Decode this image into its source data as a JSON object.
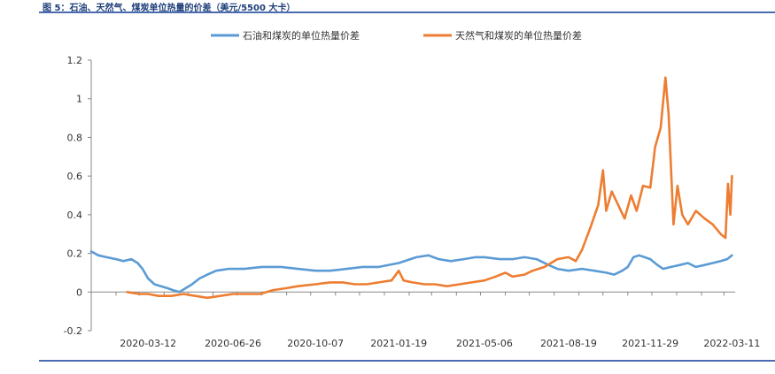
{
  "header": {
    "figure_title": "图 5：石油、天然气、煤炭单位热量的价差（美元/5500 大卡）"
  },
  "colors": {
    "oil_coal": "#5b9bd5",
    "gas_coal": "#ed7d31",
    "rule": "#4a6bb0",
    "axis": "#888888"
  },
  "chart_data": {
    "type": "line",
    "title": "",
    "xlabel": "",
    "ylabel": "",
    "ylim": [
      -0.2,
      1.2
    ],
    "yticks": [
      -0.2,
      0,
      0.2,
      0.4,
      0.6,
      0.8,
      1,
      1.2
    ],
    "ytick_labels": [
      "-0.2",
      "0",
      "0.2",
      "0.4",
      "0.6",
      "0.8",
      "1",
      "1.2"
    ],
    "xlim": [
      "2020-01-01",
      "2022-03-15"
    ],
    "xticks": [
      "2020-03-12",
      "2020-06-26",
      "2020-10-07",
      "2021-01-19",
      "2021-05-06",
      "2021-08-19",
      "2021-11-29",
      "2022-03-11"
    ],
    "legend_position": "top",
    "grid": false,
    "series": [
      {
        "name": "石油和煤炭的单位热量价差",
        "color": "#5b9bd5",
        "points": [
          [
            "2020-01-01",
            0.21
          ],
          [
            "2020-01-10",
            0.19
          ],
          [
            "2020-01-20",
            0.18
          ],
          [
            "2020-02-01",
            0.17
          ],
          [
            "2020-02-10",
            0.16
          ],
          [
            "2020-02-20",
            0.17
          ],
          [
            "2020-02-28",
            0.15
          ],
          [
            "2020-03-05",
            0.12
          ],
          [
            "2020-03-12",
            0.07
          ],
          [
            "2020-03-20",
            0.04
          ],
          [
            "2020-03-28",
            0.03
          ],
          [
            "2020-04-05",
            0.02
          ],
          [
            "2020-04-12",
            0.01
          ],
          [
            "2020-04-20",
            0.0
          ],
          [
            "2020-04-28",
            0.02
          ],
          [
            "2020-05-06",
            0.04
          ],
          [
            "2020-05-15",
            0.07
          ],
          [
            "2020-05-25",
            0.09
          ],
          [
            "2020-06-05",
            0.11
          ],
          [
            "2020-06-20",
            0.12
          ],
          [
            "2020-07-10",
            0.12
          ],
          [
            "2020-08-01",
            0.13
          ],
          [
            "2020-08-25",
            0.13
          ],
          [
            "2020-09-15",
            0.12
          ],
          [
            "2020-10-07",
            0.11
          ],
          [
            "2020-10-25",
            0.11
          ],
          [
            "2020-11-15",
            0.12
          ],
          [
            "2020-12-05",
            0.13
          ],
          [
            "2020-12-25",
            0.13
          ],
          [
            "2021-01-19",
            0.15
          ],
          [
            "2021-02-10",
            0.18
          ],
          [
            "2021-02-25",
            0.19
          ],
          [
            "2021-03-10",
            0.17
          ],
          [
            "2021-03-25",
            0.16
          ],
          [
            "2021-04-10",
            0.17
          ],
          [
            "2021-04-25",
            0.18
          ],
          [
            "2021-05-06",
            0.18
          ],
          [
            "2021-05-25",
            0.17
          ],
          [
            "2021-06-10",
            0.17
          ],
          [
            "2021-06-25",
            0.18
          ],
          [
            "2021-07-10",
            0.17
          ],
          [
            "2021-07-25",
            0.14
          ],
          [
            "2021-08-05",
            0.12
          ],
          [
            "2021-08-19",
            0.11
          ],
          [
            "2021-09-05",
            0.12
          ],
          [
            "2021-09-20",
            0.11
          ],
          [
            "2021-10-05",
            0.1
          ],
          [
            "2021-10-15",
            0.09
          ],
          [
            "2021-10-25",
            0.11
          ],
          [
            "2021-11-01",
            0.13
          ],
          [
            "2021-11-08",
            0.18
          ],
          [
            "2021-11-15",
            0.19
          ],
          [
            "2021-11-22",
            0.18
          ],
          [
            "2021-11-29",
            0.17
          ],
          [
            "2021-12-08",
            0.14
          ],
          [
            "2021-12-15",
            0.12
          ],
          [
            "2021-12-25",
            0.13
          ],
          [
            "2022-01-05",
            0.14
          ],
          [
            "2022-01-15",
            0.15
          ],
          [
            "2022-01-25",
            0.13
          ],
          [
            "2022-02-05",
            0.14
          ],
          [
            "2022-02-15",
            0.15
          ],
          [
            "2022-02-25",
            0.16
          ],
          [
            "2022-03-05",
            0.17
          ],
          [
            "2022-03-11",
            0.19
          ]
        ]
      },
      {
        "name": "天然气和煤炭的单位热量价差",
        "color": "#ed7d31",
        "points": [
          [
            "2020-02-15",
            0.0
          ],
          [
            "2020-03-01",
            -0.01
          ],
          [
            "2020-03-12",
            -0.01
          ],
          [
            "2020-03-25",
            -0.02
          ],
          [
            "2020-04-10",
            -0.02
          ],
          [
            "2020-04-25",
            -0.01
          ],
          [
            "2020-05-10",
            -0.02
          ],
          [
            "2020-05-25",
            -0.03
          ],
          [
            "2020-06-10",
            -0.02
          ],
          [
            "2020-06-26",
            -0.01
          ],
          [
            "2020-07-15",
            -0.01
          ],
          [
            "2020-07-30",
            -0.01
          ],
          [
            "2020-08-15",
            0.01
          ],
          [
            "2020-09-01",
            0.02
          ],
          [
            "2020-09-15",
            0.03
          ],
          [
            "2020-10-07",
            0.04
          ],
          [
            "2020-10-25",
            0.05
          ],
          [
            "2020-11-10",
            0.05
          ],
          [
            "2020-11-25",
            0.04
          ],
          [
            "2020-12-10",
            0.04
          ],
          [
            "2020-12-25",
            0.05
          ],
          [
            "2021-01-10",
            0.06
          ],
          [
            "2021-01-19",
            0.11
          ],
          [
            "2021-01-25",
            0.06
          ],
          [
            "2021-02-05",
            0.05
          ],
          [
            "2021-02-20",
            0.04
          ],
          [
            "2021-03-05",
            0.04
          ],
          [
            "2021-03-20",
            0.03
          ],
          [
            "2021-04-05",
            0.04
          ],
          [
            "2021-04-20",
            0.05
          ],
          [
            "2021-05-06",
            0.06
          ],
          [
            "2021-05-20",
            0.08
          ],
          [
            "2021-06-01",
            0.1
          ],
          [
            "2021-06-10",
            0.08
          ],
          [
            "2021-06-25",
            0.09
          ],
          [
            "2021-07-05",
            0.11
          ],
          [
            "2021-07-20",
            0.13
          ],
          [
            "2021-08-05",
            0.17
          ],
          [
            "2021-08-19",
            0.18
          ],
          [
            "2021-08-28",
            0.16
          ],
          [
            "2021-09-05",
            0.22
          ],
          [
            "2021-09-15",
            0.33
          ],
          [
            "2021-09-25",
            0.45
          ],
          [
            "2021-10-01",
            0.63
          ],
          [
            "2021-10-05",
            0.42
          ],
          [
            "2021-10-12",
            0.52
          ],
          [
            "2021-10-20",
            0.45
          ],
          [
            "2021-10-28",
            0.38
          ],
          [
            "2021-11-05",
            0.5
          ],
          [
            "2021-11-12",
            0.42
          ],
          [
            "2021-11-20",
            0.55
          ],
          [
            "2021-11-29",
            0.54
          ],
          [
            "2021-12-05",
            0.75
          ],
          [
            "2021-12-12",
            0.85
          ],
          [
            "2021-12-18",
            1.11
          ],
          [
            "2021-12-22",
            0.92
          ],
          [
            "2021-12-28",
            0.35
          ],
          [
            "2022-01-02",
            0.55
          ],
          [
            "2022-01-08",
            0.4
          ],
          [
            "2022-01-15",
            0.35
          ],
          [
            "2022-01-25",
            0.42
          ],
          [
            "2022-02-05",
            0.38
          ],
          [
            "2022-02-15",
            0.35
          ],
          [
            "2022-02-25",
            0.3
          ],
          [
            "2022-03-03",
            0.28
          ],
          [
            "2022-03-06",
            0.56
          ],
          [
            "2022-03-09",
            0.4
          ],
          [
            "2022-03-11",
            0.6
          ]
        ]
      }
    ]
  }
}
